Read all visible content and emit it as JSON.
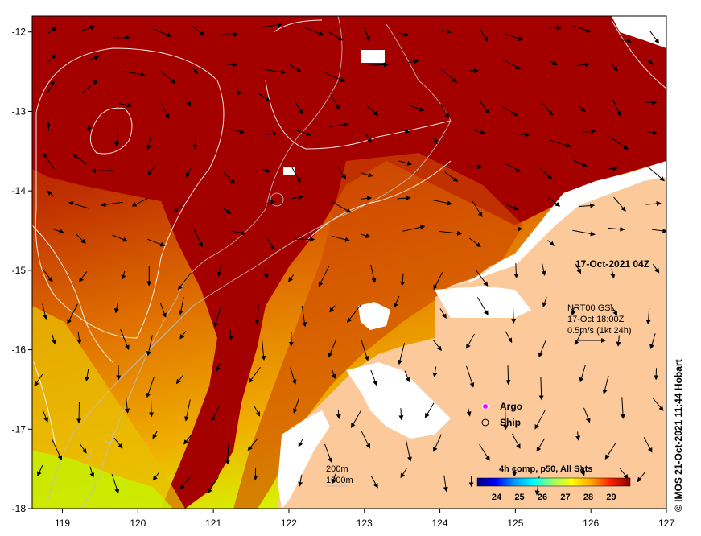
{
  "map": {
    "x_ticks": [
      "119",
      "120",
      "121",
      "122",
      "123",
      "124",
      "125",
      "126",
      "127"
    ],
    "y_ticks": [
      "-12",
      "-13",
      "-14",
      "-15",
      "-16",
      "-17",
      "-18"
    ],
    "lon_range": [
      118.6,
      127
    ],
    "lat_range": [
      -18,
      -11.8
    ],
    "colors": {
      "ocean_hot": "#a00000",
      "ocean_warm": "#e06a00",
      "ocean_cool": "#f0c000",
      "ocean_coolest": "#c8ff00",
      "land": "#fbc99a",
      "cloud": "#ffffff"
    }
  },
  "annotations": {
    "date": "17-Oct-2021 04Z",
    "current_line1": "NRT00 GSL",
    "current_line2": "17-Oct 18:00Z",
    "current_line3": "0.5m/s (1kt 24h)",
    "legend_argo": "Argo",
    "legend_ship": "Ship",
    "depth_200": "200m",
    "depth_1000": "1000m"
  },
  "colorbar": {
    "title": "4h comp, p50, All Sats",
    "ticks": [
      "24",
      "25",
      "26",
      "27",
      "28",
      "29"
    ],
    "stops": [
      "#00007f",
      "#0000ff",
      "#00a0ff",
      "#00ffff",
      "#a0ff60",
      "#ffff00",
      "#ffa000",
      "#ff2000",
      "#8b0000"
    ]
  },
  "credit": "© IMOS 21-Oct-2021 11:44 Hobart"
}
